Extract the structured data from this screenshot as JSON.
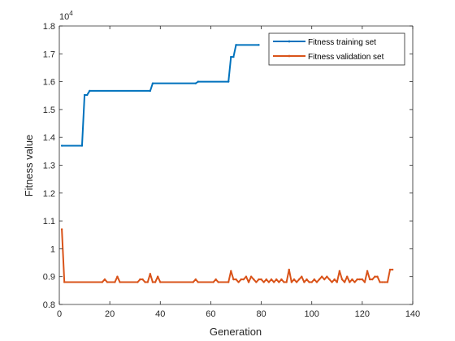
{
  "chart_data": {
    "type": "line",
    "xlabel": "Generation",
    "ylabel": "Fitness value",
    "y_exponent_label": "10",
    "y_exponent_power": "4",
    "xlim": [
      0,
      140
    ],
    "ylim": [
      0.8,
      1.8
    ],
    "x_ticks": [
      0,
      20,
      40,
      60,
      80,
      100,
      120,
      140
    ],
    "y_ticks": [
      0.8,
      0.9,
      1,
      1.1,
      1.2,
      1.3,
      1.4,
      1.5,
      1.6,
      1.7,
      1.8
    ],
    "x_tick_labels": [
      "0",
      "20",
      "40",
      "60",
      "80",
      "100",
      "120",
      "140"
    ],
    "y_tick_labels": [
      "0.8",
      "0.9",
      "1",
      "1.1",
      "1.2",
      "1.3",
      "1.4",
      "1.5",
      "1.6",
      "1.7",
      "1.8"
    ],
    "grid": false,
    "legend_position": "top-right",
    "series": [
      {
        "name": "Fitness training set",
        "color": "#0072BD",
        "points": [
          [
            1,
            1.37
          ],
          [
            9,
            1.37
          ],
          [
            10,
            1.552
          ],
          [
            11,
            1.552
          ],
          [
            12,
            1.567
          ],
          [
            36,
            1.567
          ],
          [
            37,
            1.594
          ],
          [
            54,
            1.594
          ],
          [
            55,
            1.6
          ],
          [
            67,
            1.6
          ],
          [
            68,
            1.689
          ],
          [
            69,
            1.689
          ],
          [
            70,
            1.732
          ],
          [
            79,
            1.732
          ]
        ]
      },
      {
        "name": "Fitness validation set",
        "color": "#D95319",
        "points": [
          [
            1,
            1.07
          ],
          [
            2,
            0.88
          ],
          [
            17,
            0.88
          ],
          [
            18,
            0.89
          ],
          [
            19,
            0.88
          ],
          [
            22,
            0.88
          ],
          [
            23,
            0.9
          ],
          [
            24,
            0.88
          ],
          [
            31,
            0.88
          ],
          [
            32,
            0.89
          ],
          [
            33,
            0.89
          ],
          [
            34,
            0.88
          ],
          [
            35,
            0.88
          ],
          [
            36,
            0.91
          ],
          [
            37,
            0.88
          ],
          [
            38,
            0.88
          ],
          [
            39,
            0.9
          ],
          [
            40,
            0.88
          ],
          [
            53,
            0.88
          ],
          [
            54,
            0.89
          ],
          [
            55,
            0.88
          ],
          [
            61,
            0.88
          ],
          [
            62,
            0.89
          ],
          [
            63,
            0.88
          ],
          [
            67,
            0.88
          ],
          [
            68,
            0.92
          ],
          [
            69,
            0.89
          ],
          [
            70,
            0.89
          ],
          [
            71,
            0.88
          ],
          [
            72,
            0.89
          ],
          [
            73,
            0.89
          ],
          [
            74,
            0.9
          ],
          [
            75,
            0.88
          ],
          [
            76,
            0.9
          ],
          [
            77,
            0.89
          ],
          [
            78,
            0.88
          ],
          [
            79,
            0.89
          ],
          [
            80,
            0.89
          ],
          [
            81,
            0.88
          ],
          [
            82,
            0.89
          ],
          [
            83,
            0.88
          ],
          [
            84,
            0.89
          ],
          [
            85,
            0.88
          ],
          [
            86,
            0.89
          ],
          [
            87,
            0.88
          ],
          [
            88,
            0.89
          ],
          [
            89,
            0.88
          ],
          [
            90,
            0.88
          ],
          [
            91,
            0.925
          ],
          [
            92,
            0.88
          ],
          [
            93,
            0.89
          ],
          [
            94,
            0.88
          ],
          [
            95,
            0.89
          ],
          [
            96,
            0.9
          ],
          [
            97,
            0.88
          ],
          [
            98,
            0.89
          ],
          [
            99,
            0.88
          ],
          [
            100,
            0.88
          ],
          [
            101,
            0.89
          ],
          [
            102,
            0.88
          ],
          [
            103,
            0.89
          ],
          [
            104,
            0.9
          ],
          [
            105,
            0.89
          ],
          [
            106,
            0.9
          ],
          [
            107,
            0.89
          ],
          [
            108,
            0.88
          ],
          [
            109,
            0.89
          ],
          [
            110,
            0.88
          ],
          [
            111,
            0.92
          ],
          [
            112,
            0.89
          ],
          [
            113,
            0.88
          ],
          [
            114,
            0.9
          ],
          [
            115,
            0.88
          ],
          [
            116,
            0.89
          ],
          [
            117,
            0.88
          ],
          [
            118,
            0.89
          ],
          [
            119,
            0.89
          ],
          [
            120,
            0.89
          ],
          [
            121,
            0.88
          ],
          [
            122,
            0.92
          ],
          [
            123,
            0.89
          ],
          [
            124,
            0.89
          ],
          [
            125,
            0.9
          ],
          [
            126,
            0.9
          ],
          [
            127,
            0.88
          ],
          [
            128,
            0.88
          ],
          [
            129,
            0.88
          ],
          [
            130,
            0.88
          ],
          [
            131,
            0.925
          ],
          [
            132,
            0.925
          ]
        ]
      }
    ]
  }
}
